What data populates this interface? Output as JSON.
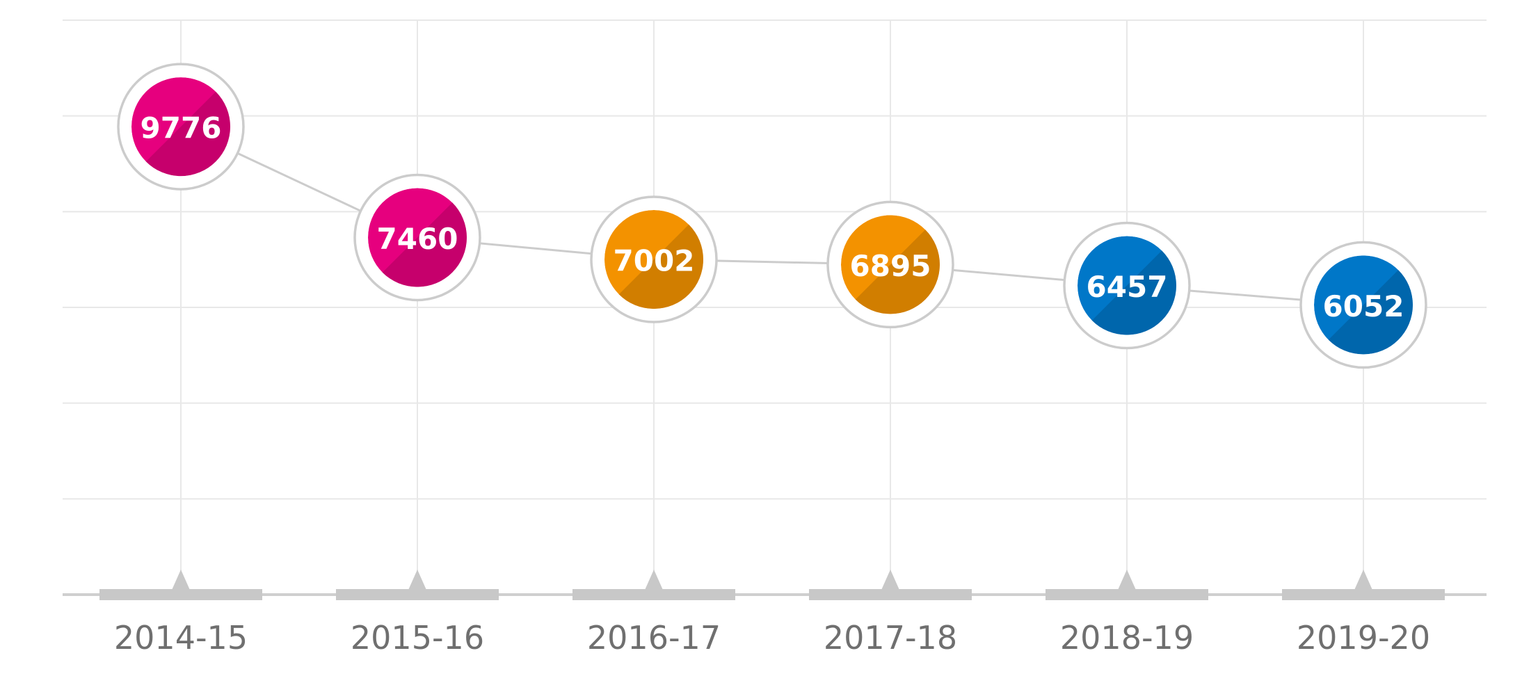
{
  "chart_data": {
    "type": "line",
    "title": "",
    "xlabel": "",
    "ylabel": "",
    "categories": [
      "2014-15",
      "2015-16",
      "2016-17",
      "2017-18",
      "2018-19",
      "2019-20"
    ],
    "values": [
      9776,
      7460,
      7002,
      6895,
      6457,
      6052
    ],
    "point_colors": [
      "#e6007e",
      "#e6007e",
      "#f39200",
      "#f39200",
      "#0077c8",
      "#0077c8"
    ],
    "ylim": [
      0,
      12000
    ],
    "grid": true,
    "legend": "none"
  }
}
